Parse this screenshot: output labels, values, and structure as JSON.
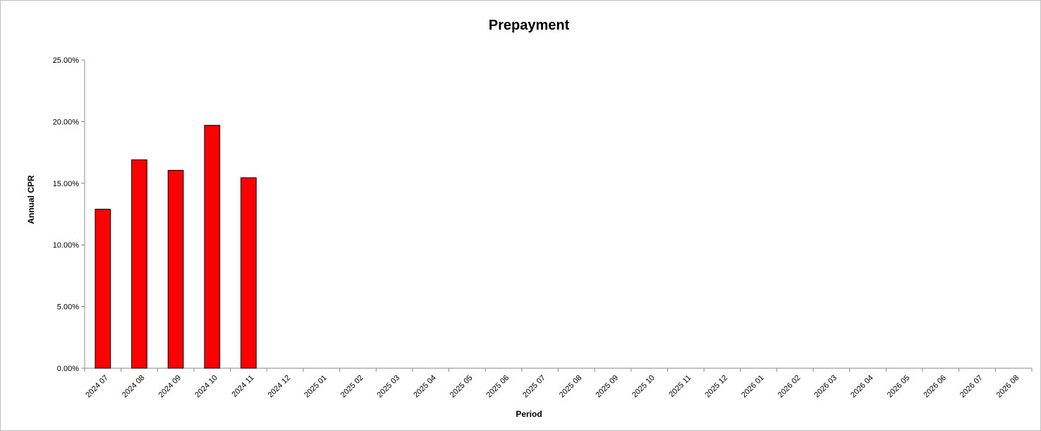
{
  "chart_data": {
    "type": "bar",
    "title": "Prepayment",
    "xlabel": "Period",
    "ylabel": "Annual CPR",
    "ylim": [
      0,
      0.25
    ],
    "yticks": [
      "0.00%",
      "5.00%",
      "10.00%",
      "15.00%",
      "20.00%",
      "25.00%"
    ],
    "categories": [
      "2024 07",
      "2024 08",
      "2024 09",
      "2024 10",
      "2024 11",
      "2024 12",
      "2025 01",
      "2025 02",
      "2025 03",
      "2025 04",
      "2025 05",
      "2025 06",
      "2025 07",
      "2025 08",
      "2025 09",
      "2025 10",
      "2025 11",
      "2025 12",
      "2026 01",
      "2026 02",
      "2026 03",
      "2026 04",
      "2026 05",
      "2026 06",
      "2026 07",
      "2026 08"
    ],
    "values": [
      0.129,
      0.169,
      0.1605,
      0.197,
      0.1545,
      null,
      null,
      null,
      null,
      null,
      null,
      null,
      null,
      null,
      null,
      null,
      null,
      null,
      null,
      null,
      null,
      null,
      null,
      null,
      null,
      null
    ],
    "bar_color": "#ff0000",
    "bar_border_color": "#000000",
    "grid": false,
    "legend": "none"
  }
}
